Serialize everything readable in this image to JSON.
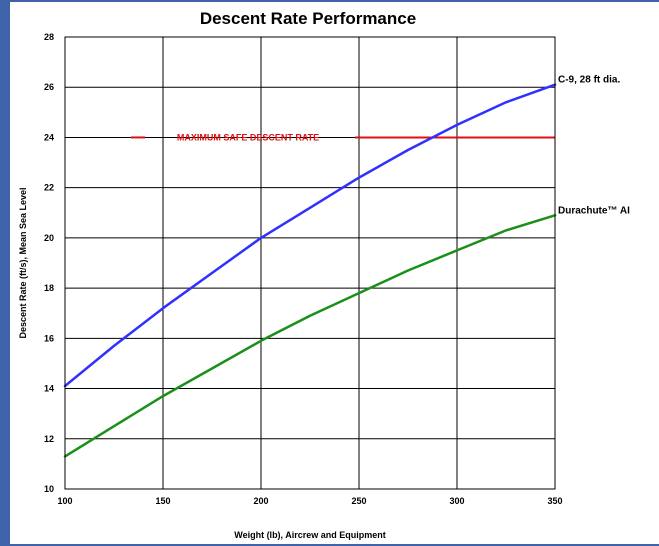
{
  "chart_data": {
    "type": "line",
    "title": "Descent Rate Performance",
    "xlabel": "Weight (lb), Aircrew and Equipment",
    "ylabel": "Descent Rate (ft/s), Mean Sea Level",
    "xlim": [
      100,
      350
    ],
    "ylim": [
      10,
      28
    ],
    "x_ticks": [
      100,
      150,
      200,
      250,
      300,
      350
    ],
    "y_ticks": [
      10,
      12,
      14,
      16,
      18,
      20,
      22,
      24,
      26,
      28
    ],
    "grid": true,
    "series": [
      {
        "name": "C-9, 28 ft dia.",
        "color": "#3030ff",
        "x": [
          100,
          125,
          150,
          175,
          200,
          225,
          250,
          275,
          300,
          325,
          350
        ],
        "y": [
          14.1,
          15.7,
          17.2,
          18.6,
          20.0,
          21.2,
          22.4,
          23.5,
          24.5,
          25.4,
          26.1
        ]
      },
      {
        "name": "Durachute™ AI",
        "color": "#1a8f1a",
        "x": [
          100,
          125,
          150,
          175,
          200,
          225,
          250,
          275,
          300,
          325,
          350
        ],
        "y": [
          11.3,
          12.5,
          13.7,
          14.8,
          15.9,
          16.9,
          17.8,
          18.7,
          19.5,
          20.3,
          20.9
        ]
      }
    ],
    "reference_lines": [
      {
        "y": 24,
        "label": "MAXIMUM SAFE DESCENT RATE",
        "color": "#e01010"
      }
    ]
  }
}
